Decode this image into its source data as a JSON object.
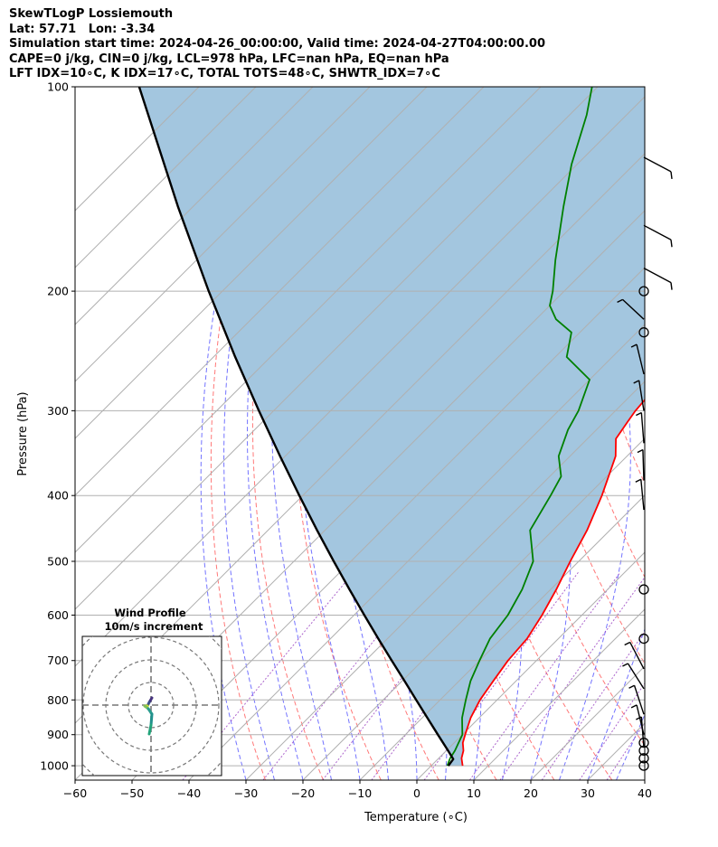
{
  "header": {
    "title": "SkewTLogP Lossiemouth",
    "location": "Lat: 57.71   Lon: -3.34",
    "times": "Simulation start time: 2024-04-26_00:00:00, Valid time: 2024-04-27T04:00:00.00",
    "indices1": "CAPE=0 j/kg, CIN=0 j/kg, LCL=978 hPa, LFC=nan hPa, EQ=nan hPa",
    "indices2": "LFT IDX=10∘C, K IDX=17∘C, TOTAL TOTS=48∘C, SHWTR_IDX=7∘C"
  },
  "colors": {
    "temperature": "#ff0000",
    "dewpoint": "#008000",
    "parcel": "#000000",
    "cape_fill": "#a3c6df",
    "dry_adiabat": "#ff6060",
    "moist_adiabat": "#5050ff",
    "mixing_ratio": "#9940c0"
  },
  "chart_data": {
    "type": "line",
    "xlabel": "Temperature (∘C)",
    "ylabel": "Pressure (hPa)",
    "xlim": [
      -60,
      40
    ],
    "ylim": [
      1050,
      100
    ],
    "y_scale": "log",
    "skew": true,
    "grid": true,
    "x_ticks": [
      "−60",
      "−50",
      "−40",
      "−30",
      "−20",
      "−10",
      "0",
      "10",
      "20",
      "30",
      "40"
    ],
    "y_ticks": [
      "100",
      "200",
      "300",
      "400",
      "500",
      "600",
      "700",
      "800",
      "900",
      "1000"
    ],
    "series": [
      {
        "key": "temperature",
        "points": [
          [
            1000,
            5.5
          ],
          [
            975,
            4
          ],
          [
            950,
            3
          ],
          [
            925,
            1.5
          ],
          [
            900,
            0.5
          ],
          [
            850,
            -1.5
          ],
          [
            800,
            -3
          ],
          [
            750,
            -4
          ],
          [
            700,
            -5
          ],
          [
            650,
            -5.5
          ],
          [
            600,
            -7
          ],
          [
            550,
            -9
          ],
          [
            500,
            -11.5
          ],
          [
            450,
            -14
          ],
          [
            400,
            -17.5
          ],
          [
            350,
            -22
          ],
          [
            330,
            -25
          ],
          [
            310,
            -26
          ],
          [
            300,
            -26.5
          ],
          [
            280,
            -27
          ],
          [
            250,
            -30
          ],
          [
            230,
            -34
          ],
          [
            200,
            -39
          ],
          [
            175,
            -44.5
          ],
          [
            160,
            -48
          ],
          [
            140,
            -53
          ],
          [
            120,
            -58.5
          ],
          [
            100,
            -63
          ]
        ]
      },
      {
        "key": "dewpoint",
        "points": [
          [
            1000,
            2.8
          ],
          [
            975,
            2
          ],
          [
            950,
            1.5
          ],
          [
            900,
            0
          ],
          [
            850,
            -3
          ],
          [
            800,
            -5.5
          ],
          [
            750,
            -8
          ],
          [
            700,
            -10
          ],
          [
            650,
            -12
          ],
          [
            600,
            -13
          ],
          [
            550,
            -15
          ],
          [
            500,
            -18
          ],
          [
            450,
            -24
          ],
          [
            400,
            -26.5
          ],
          [
            375,
            -28
          ],
          [
            350,
            -32
          ],
          [
            320,
            -35
          ],
          [
            300,
            -36.5
          ],
          [
            270,
            -40
          ],
          [
            250,
            -48
          ],
          [
            230,
            -51.5
          ],
          [
            220,
            -56.5
          ],
          [
            210,
            -60
          ],
          [
            200,
            -62
          ],
          [
            180,
            -67
          ],
          [
            150,
            -75
          ],
          [
            130,
            -81
          ],
          [
            110,
            -87
          ],
          [
            100,
            -91
          ]
        ]
      },
      {
        "key": "parcel",
        "points": [
          [
            1000,
            3
          ],
          [
            978,
            2.7
          ],
          [
            950,
            0.3
          ],
          [
            900,
            -4.3
          ],
          [
            850,
            -9.1
          ],
          [
            800,
            -14.2
          ],
          [
            750,
            -19.6
          ],
          [
            700,
            -25.4
          ],
          [
            650,
            -31.6
          ],
          [
            600,
            -38.2
          ],
          [
            550,
            -45.3
          ],
          [
            500,
            -53
          ],
          [
            450,
            -61.4
          ],
          [
            400,
            -70.6
          ],
          [
            350,
            -80.9
          ],
          [
            300,
            -92.6
          ],
          [
            250,
            -106.2
          ],
          [
            200,
            -122.4
          ],
          [
            150,
            -142.7
          ],
          [
            100,
            -170.5
          ]
        ]
      }
    ],
    "cape_region": "between parcel and temperature profile",
    "wind_barbs": {
      "side": "right",
      "calm_levels": [
        1000,
        975,
        950,
        925,
        550,
        650,
        230,
        200
      ]
    },
    "hodograph": {
      "title": "Wind Profile",
      "subtitle": "10m/s increment",
      "rings": 4
    }
  }
}
